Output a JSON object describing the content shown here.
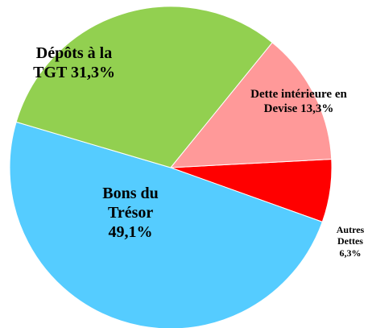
{
  "chart_data": {
    "type": "pie",
    "categories": [
      "Autres Dettes",
      "Bons du Trésor",
      "Dépôts à la TGT",
      "Dette intérieure en Devise"
    ],
    "values": [
      6.3,
      49.1,
      31.3,
      13.3
    ],
    "value_labels": [
      "6,3%",
      "49,1%",
      "31,3%",
      "13,3%"
    ],
    "colors": [
      "#ff0000",
      "#55ccff",
      "#92d050",
      "#ff9999"
    ]
  }
}
